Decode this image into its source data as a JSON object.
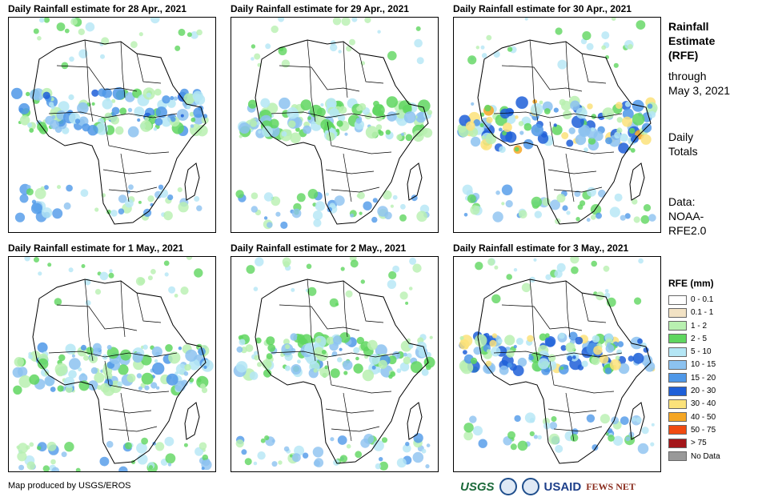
{
  "panels": [
    {
      "title": "Daily Rainfall estimate for 28 Apr., 2021"
    },
    {
      "title": "Daily Rainfall estimate for 29 Apr., 2021"
    },
    {
      "title": "Daily Rainfall estimate for 30 Apr., 2021"
    },
    {
      "title": "Daily Rainfall estimate for 1 May., 2021"
    },
    {
      "title": "Daily Rainfall estimate for 2 May., 2021"
    },
    {
      "title": "Daily Rainfall estimate for 3 May., 2021"
    }
  ],
  "sidebar": {
    "title_lines": [
      "Rainfall",
      "Estimate",
      "(RFE)"
    ],
    "through_lines": [
      "through",
      "May 3, 2021"
    ],
    "daily_lines": [
      "Daily",
      "Totals"
    ],
    "data_lines": [
      "Data:",
      "NOAA-",
      "RFE2.0"
    ]
  },
  "legend": {
    "title": "RFE (mm)",
    "items": [
      {
        "label": "0 - 0.1",
        "color": "#ffffff"
      },
      {
        "label": "0.1 - 1",
        "color": "#f2e2c4"
      },
      {
        "label": "1 - 2",
        "color": "#b8f0b0"
      },
      {
        "label": "2 - 5",
        "color": "#5fd65f"
      },
      {
        "label": "5 - 10",
        "color": "#b4e6f5"
      },
      {
        "label": "10 - 15",
        "color": "#8cc2f0"
      },
      {
        "label": "15 - 20",
        "color": "#4f98e8"
      },
      {
        "label": "20 - 30",
        "color": "#1e5fd8"
      },
      {
        "label": "30 - 40",
        "color": "#fbe27a"
      },
      {
        "label": "40 - 50",
        "color": "#f5a623"
      },
      {
        "label": "50 - 75",
        "color": "#f04a10"
      },
      {
        "label": "> 75",
        "color": "#a4161a"
      },
      {
        "label": "No Data",
        "color": "#999999"
      }
    ]
  },
  "credit": "Map produced by USGS/EROS",
  "logos": {
    "usgs": "USGS",
    "usaid": "USAID",
    "fews": "FEWS NET",
    "noaa_icon": "noaa-logo-icon",
    "seal_icon": "usaid-seal-icon"
  }
}
